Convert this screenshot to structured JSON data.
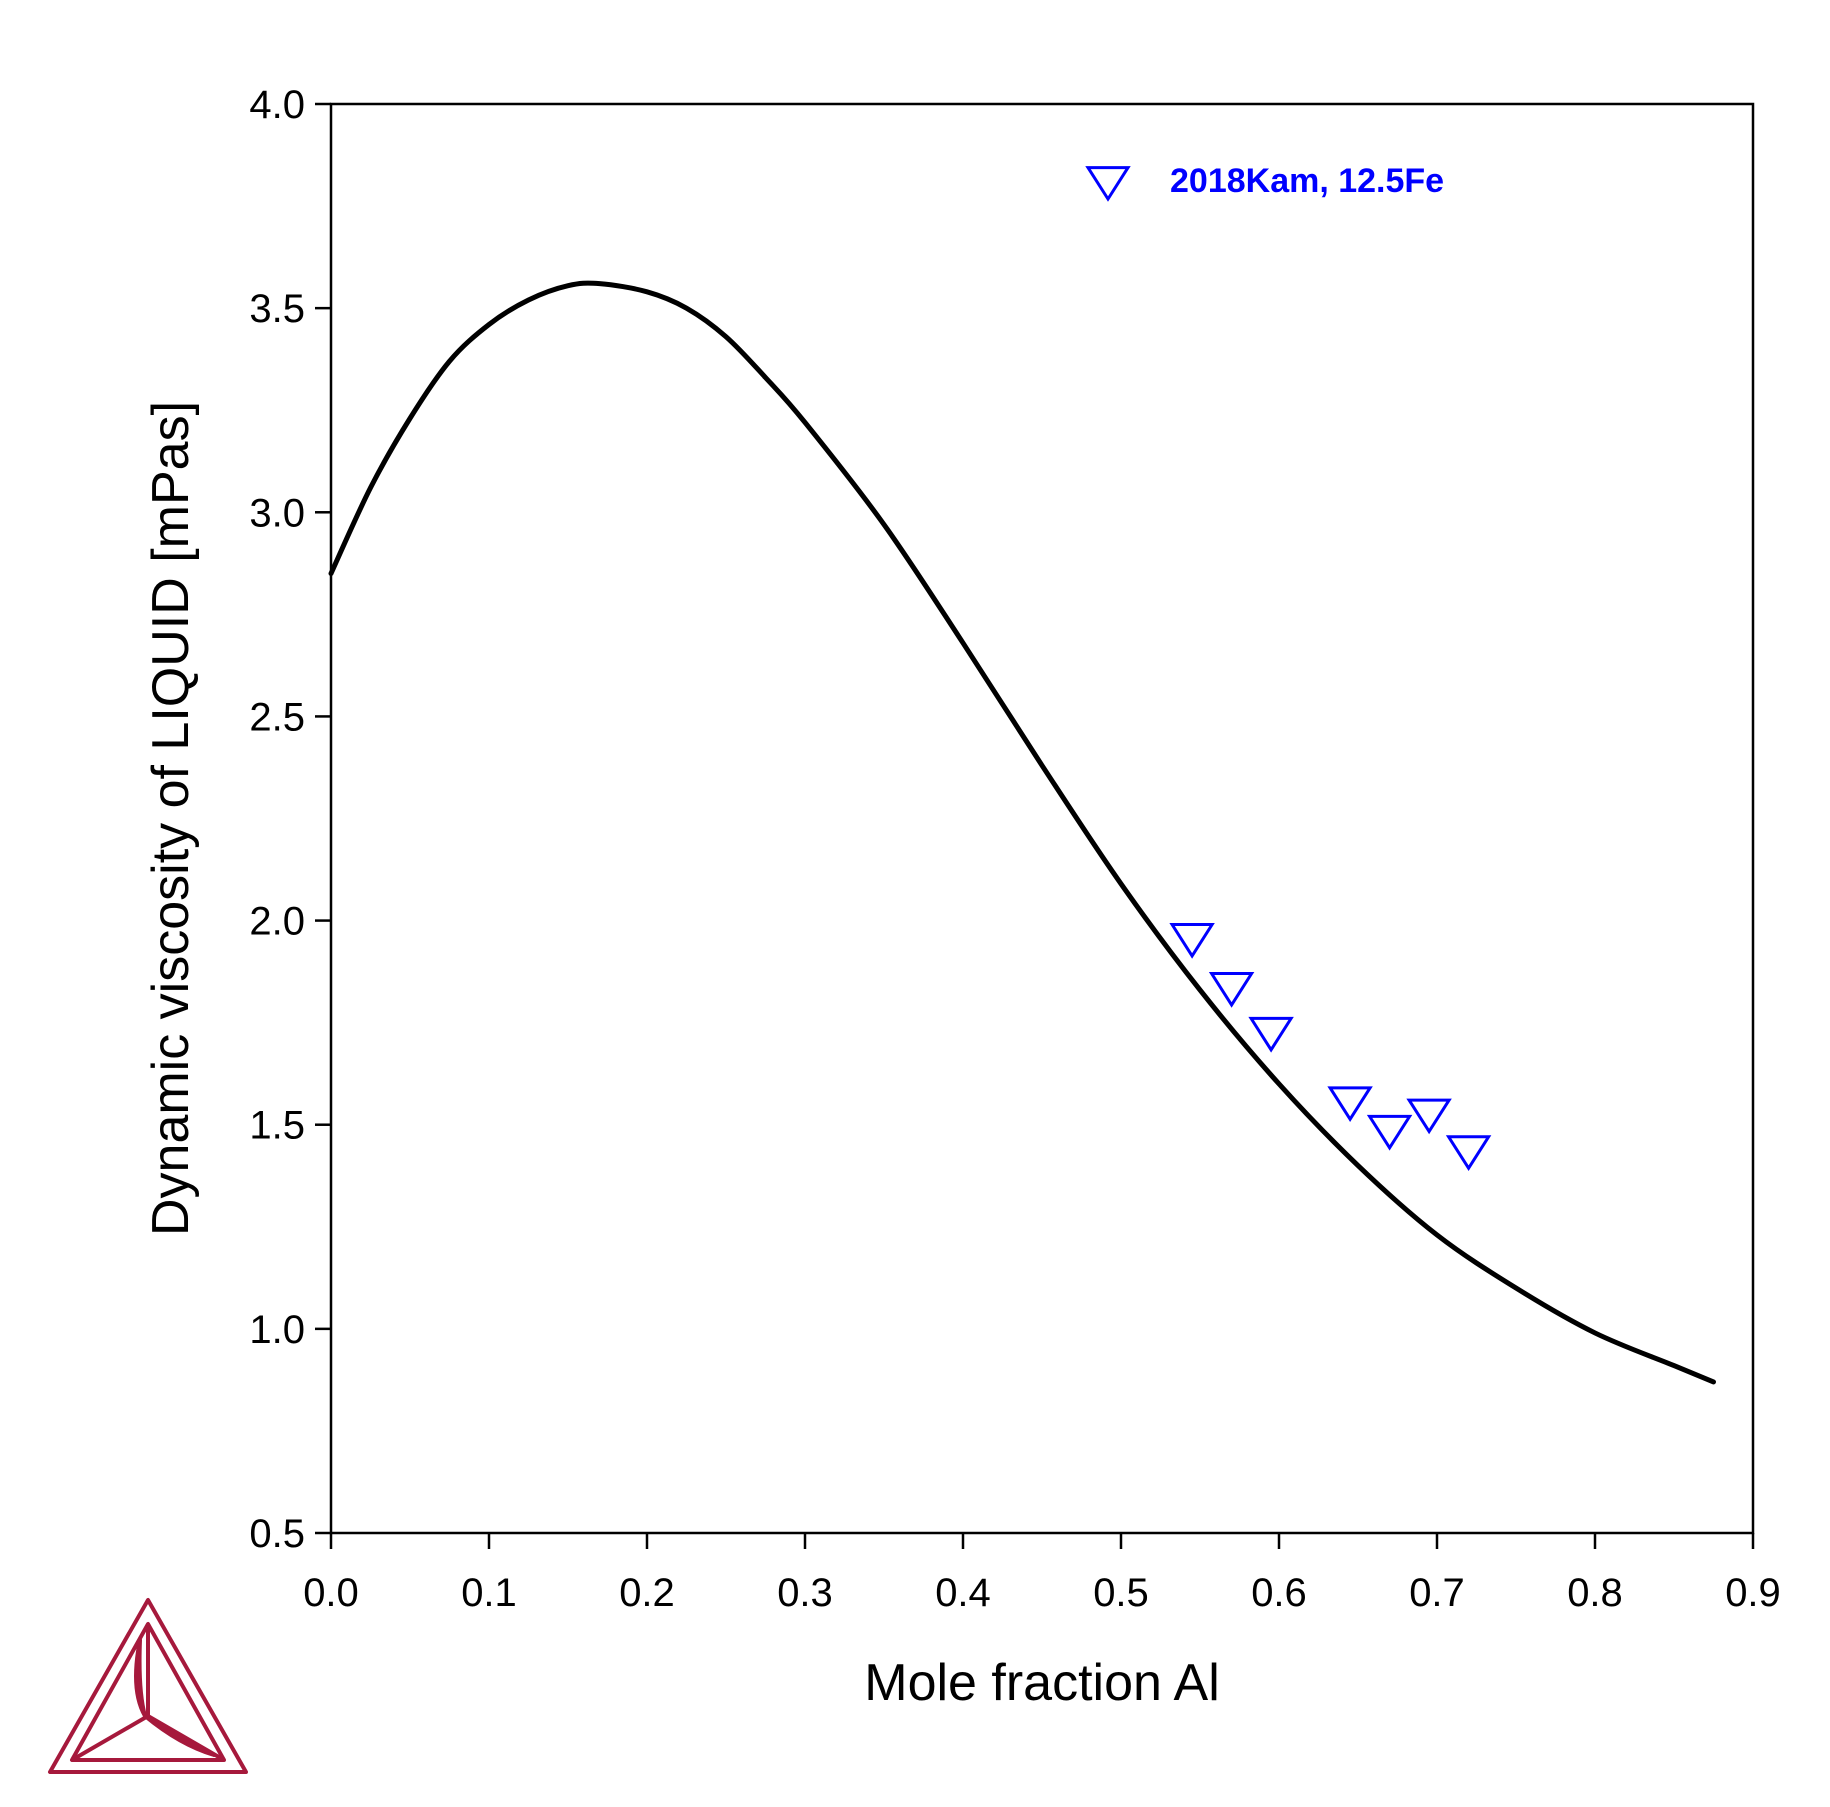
{
  "chart_data": {
    "type": "scatter",
    "title": "",
    "xlabel": "Mole fraction Al",
    "ylabel": "Dynamic viscosity of LIQUID [mPas]",
    "xlim": [
      0.0,
      0.9
    ],
    "ylim": [
      0.5,
      4.0
    ],
    "x_ticks": [
      "0.0",
      "0.1",
      "0.2",
      "0.3",
      "0.4",
      "0.5",
      "0.6",
      "0.7",
      "0.8",
      "0.9"
    ],
    "y_ticks": [
      "0.5",
      "1.0",
      "1.5",
      "2.0",
      "2.5",
      "3.0",
      "3.5",
      "4.0"
    ],
    "grid": false,
    "legend_position": "top-right",
    "series": [
      {
        "kind": "line",
        "color": "#000000",
        "x": [
          0.0,
          0.025,
          0.05,
          0.075,
          0.1,
          0.125,
          0.15,
          0.17,
          0.2,
          0.225,
          0.25,
          0.275,
          0.3,
          0.35,
          0.4,
          0.45,
          0.5,
          0.55,
          0.6,
          0.65,
          0.7,
          0.75,
          0.8,
          0.85,
          0.875
        ],
        "y": [
          2.85,
          3.06,
          3.23,
          3.37,
          3.46,
          3.52,
          3.555,
          3.56,
          3.54,
          3.5,
          3.43,
          3.33,
          3.22,
          2.97,
          2.68,
          2.38,
          2.09,
          1.83,
          1.6,
          1.4,
          1.23,
          1.1,
          0.99,
          0.91,
          0.87
        ]
      },
      {
        "kind": "scatter",
        "name": "2018Kam, 12.5Fe",
        "marker": "triangle-down-open",
        "color": "#0000ff",
        "x": [
          0.545,
          0.57,
          0.595,
          0.645,
          0.67,
          0.695,
          0.72
        ],
        "y": [
          1.96,
          1.84,
          1.73,
          1.56,
          1.49,
          1.53,
          1.44
        ]
      }
    ]
  },
  "colors": {
    "axis": "#000000",
    "curve": "#000000",
    "data_points": "#0000ff",
    "logo": "#a6193c"
  },
  "logo": {
    "icon": "thermo-calc-logo-icon"
  }
}
